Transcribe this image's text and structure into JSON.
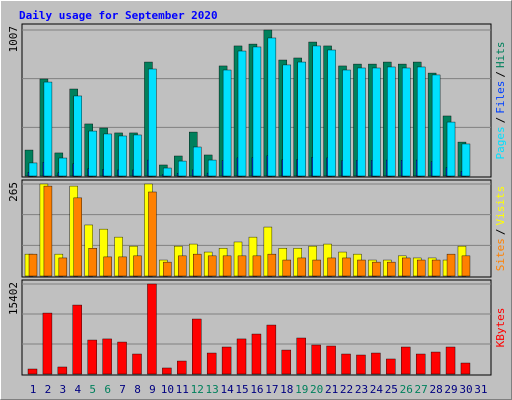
{
  "title": "Daily usage for September 2020",
  "legend_separator": "/",
  "chart_data": [
    {
      "type": "bar",
      "ylim": [
        0,
        1007
      ],
      "yticks": [
        1007
      ],
      "series": [
        {
          "name": "Hits",
          "color": "#00805c",
          "values": [
            179,
            669,
            159,
            600,
            359,
            331,
            297,
            297,
            786,
            76,
            138,
            303,
            145,
            759,
            897,
            910,
            1007,
            800,
            814,
            924,
            897,
            759,
            772,
            772,
            786,
            772,
            786,
            710,
            414,
            234,
            null
          ]
        },
        {
          "name": "Files",
          "color": "#0040ff",
          "values": [
            25,
            95,
            22,
            85,
            50,
            46,
            42,
            42,
            110,
            11,
            19,
            42,
            20,
            106,
            125,
            127,
            140,
            112,
            114,
            129,
            125,
            106,
            108,
            108,
            110,
            108,
            110,
            99,
            58,
            33,
            null
          ]
        },
        {
          "name": "Pages",
          "color": "#00e0ff",
          "values": [
            90,
            648,
            124,
            552,
            310,
            290,
            276,
            283,
            738,
            55,
            103,
            200,
            110,
            731,
            862,
            890,
            952,
            766,
            786,
            897,
            869,
            731,
            745,
            745,
            752,
            745,
            752,
            697,
            372,
            221,
            null
          ]
        }
      ]
    },
    {
      "type": "bar",
      "ylim": [
        0,
        265
      ],
      "yticks": [
        265
      ],
      "series": [
        {
          "name": "Visits",
          "color": "#ffff00",
          "values": [
            63,
            265,
            63,
            259,
            147,
            135,
            112,
            86,
            265,
            46,
            86,
            92,
            69,
            80,
            98,
            112,
            141,
            80,
            80,
            86,
            92,
            69,
            63,
            46,
            46,
            58,
            52,
            52,
            46,
            86,
            null
          ]
        },
        {
          "name": "Sites",
          "color": "#ff8000",
          "values": [
            63,
            259,
            52,
            225,
            80,
            55,
            55,
            58,
            242,
            40,
            58,
            63,
            58,
            58,
            58,
            58,
            63,
            46,
            52,
            46,
            52,
            52,
            46,
            40,
            40,
            52,
            46,
            46,
            63,
            58,
            null
          ]
        }
      ]
    },
    {
      "type": "bar",
      "ylim": [
        0,
        15402
      ],
      "yticks": [
        15402
      ],
      "categories": [
        1,
        2,
        3,
        4,
        5,
        6,
        7,
        8,
        9,
        10,
        11,
        12,
        13,
        14,
        15,
        16,
        17,
        18,
        19,
        20,
        21,
        22,
        23,
        24,
        25,
        26,
        27,
        28,
        29,
        30,
        31
      ],
      "category_colors": [
        "#000080",
        "#000080",
        "#000080",
        "#000080",
        "#00805c",
        "#00805c",
        "#000080",
        "#000080",
        "#000080",
        "#000080",
        "#000080",
        "#00805c",
        "#00805c",
        "#000080",
        "#000080",
        "#000080",
        "#000080",
        "#000080",
        "#00805c",
        "#00805c",
        "#000080",
        "#000080",
        "#000080",
        "#000080",
        "#000080",
        "#00805c",
        "#00805c",
        "#000080",
        "#000080",
        "#000080",
        "#000080"
      ],
      "series": [
        {
          "name": "KBytes",
          "color": "#ff0000",
          "values": [
            855,
            10430,
            1200,
            11800,
            5815,
            6000,
            5470,
            3420,
            15402,
            1030,
            2220,
            9410,
            3590,
            4620,
            6000,
            6840,
            8380,
            4100,
            6160,
            4960,
            4790,
            3420,
            3250,
            3590,
            2570,
            4620,
            3420,
            3760,
            4620,
            1880,
            null
          ]
        }
      ]
    }
  ]
}
